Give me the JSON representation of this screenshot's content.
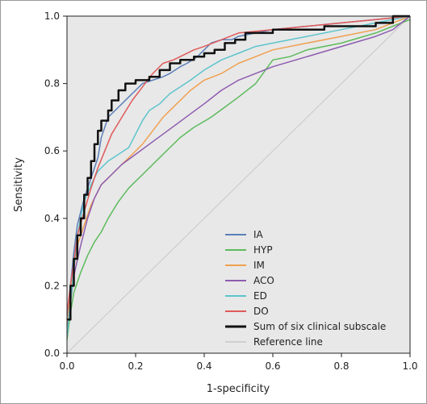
{
  "chart_data": {
    "type": "line",
    "title": "",
    "xlabel": "1-specificity",
    "ylabel": "Sensitivity",
    "xlim": [
      0,
      1
    ],
    "ylim": [
      0,
      1
    ],
    "x_ticks": [
      "0.0",
      "0.2",
      "0.4",
      "0.6",
      "0.8",
      "1.0"
    ],
    "y_ticks": [
      "0.0",
      "0.2",
      "0.4",
      "0.6",
      "0.8",
      "1.0"
    ],
    "plot_background": "#e8e8e8",
    "grid": false,
    "legend_position": "bottom-right",
    "series": [
      {
        "name": "IA",
        "color": "#5b7fb8",
        "width": 1.5,
        "x": [
          0,
          0.01,
          0.02,
          0.03,
          0.05,
          0.07,
          0.09,
          0.1,
          0.12,
          0.15,
          0.18,
          0.2,
          0.22,
          0.25,
          0.28,
          0.3,
          0.33,
          0.35,
          0.38,
          0.4,
          0.42,
          0.45,
          0.48,
          0.5,
          0.55,
          0.6,
          0.7,
          0.8,
          0.9,
          1.0
        ],
        "y": [
          0.1,
          0.2,
          0.3,
          0.38,
          0.46,
          0.52,
          0.58,
          0.64,
          0.7,
          0.73,
          0.76,
          0.78,
          0.8,
          0.81,
          0.82,
          0.83,
          0.85,
          0.86,
          0.88,
          0.9,
          0.92,
          0.93,
          0.93,
          0.94,
          0.95,
          0.96,
          0.97,
          0.98,
          0.99,
          1.0
        ]
      },
      {
        "name": "HYP",
        "color": "#5dbb5d",
        "width": 1.5,
        "x": [
          0,
          0.01,
          0.02,
          0.04,
          0.06,
          0.08,
          0.1,
          0.12,
          0.15,
          0.18,
          0.22,
          0.26,
          0.3,
          0.33,
          0.37,
          0.42,
          0.46,
          0.5,
          0.55,
          0.6,
          0.65,
          0.7,
          0.8,
          0.9,
          0.95,
          1.0
        ],
        "y": [
          0.04,
          0.12,
          0.18,
          0.24,
          0.29,
          0.33,
          0.36,
          0.4,
          0.45,
          0.49,
          0.53,
          0.57,
          0.61,
          0.64,
          0.67,
          0.7,
          0.73,
          0.76,
          0.8,
          0.87,
          0.88,
          0.9,
          0.92,
          0.95,
          0.97,
          0.99
        ]
      },
      {
        "name": "IM",
        "color": "#f0a050",
        "width": 1.5,
        "x": [
          0,
          0.01,
          0.02,
          0.03,
          0.05,
          0.07,
          0.1,
          0.13,
          0.16,
          0.19,
          0.22,
          0.25,
          0.28,
          0.32,
          0.36,
          0.4,
          0.45,
          0.5,
          0.55,
          0.6,
          0.7,
          0.8,
          0.9,
          0.95,
          1.0
        ],
        "y": [
          0.08,
          0.17,
          0.25,
          0.32,
          0.38,
          0.44,
          0.5,
          0.53,
          0.56,
          0.59,
          0.62,
          0.66,
          0.7,
          0.74,
          0.78,
          0.81,
          0.83,
          0.86,
          0.88,
          0.9,
          0.92,
          0.94,
          0.96,
          0.98,
          1.0
        ]
      },
      {
        "name": "ACO",
        "color": "#8d5cb0",
        "width": 1.5,
        "x": [
          0,
          0.01,
          0.02,
          0.04,
          0.06,
          0.08,
          0.1,
          0.13,
          0.16,
          0.2,
          0.24,
          0.28,
          0.32,
          0.36,
          0.4,
          0.45,
          0.5,
          0.55,
          0.6,
          0.7,
          0.8,
          0.9,
          0.95,
          1.0
        ],
        "y": [
          0.06,
          0.15,
          0.23,
          0.32,
          0.4,
          0.46,
          0.5,
          0.53,
          0.56,
          0.59,
          0.62,
          0.65,
          0.68,
          0.71,
          0.74,
          0.78,
          0.81,
          0.83,
          0.85,
          0.88,
          0.91,
          0.94,
          0.96,
          1.0
        ]
      },
      {
        "name": "ED",
        "color": "#5ec4cc",
        "width": 1.5,
        "x": [
          0,
          0.01,
          0.02,
          0.03,
          0.05,
          0.07,
          0.09,
          0.12,
          0.15,
          0.18,
          0.2,
          0.22,
          0.24,
          0.27,
          0.3,
          0.33,
          0.36,
          0.4,
          0.45,
          0.5,
          0.55,
          0.6,
          0.7,
          0.8,
          0.9,
          1.0
        ],
        "y": [
          0.05,
          0.15,
          0.25,
          0.35,
          0.45,
          0.5,
          0.54,
          0.57,
          0.59,
          0.61,
          0.65,
          0.69,
          0.72,
          0.74,
          0.77,
          0.79,
          0.81,
          0.84,
          0.87,
          0.89,
          0.91,
          0.92,
          0.94,
          0.96,
          0.98,
          1.0
        ]
      },
      {
        "name": "DO",
        "color": "#e05a5a",
        "width": 1.5,
        "x": [
          0,
          0.01,
          0.02,
          0.03,
          0.05,
          0.07,
          0.09,
          0.11,
          0.13,
          0.16,
          0.19,
          0.22,
          0.25,
          0.28,
          0.31,
          0.33,
          0.37,
          0.4,
          0.45,
          0.5,
          0.6,
          0.7,
          0.8,
          0.9,
          1.0
        ],
        "y": [
          0.12,
          0.2,
          0.27,
          0.35,
          0.42,
          0.49,
          0.55,
          0.6,
          0.65,
          0.7,
          0.75,
          0.79,
          0.83,
          0.86,
          0.87,
          0.88,
          0.9,
          0.91,
          0.93,
          0.95,
          0.96,
          0.97,
          0.98,
          0.99,
          1.0
        ]
      },
      {
        "name": "Sum of six clinical subscale",
        "color": "#111111",
        "width": 2.5,
        "x": [
          0,
          0.01,
          0.01,
          0.02,
          0.02,
          0.03,
          0.03,
          0.04,
          0.04,
          0.05,
          0.05,
          0.06,
          0.06,
          0.07,
          0.07,
          0.08,
          0.08,
          0.09,
          0.09,
          0.1,
          0.1,
          0.12,
          0.12,
          0.13,
          0.13,
          0.15,
          0.15,
          0.17,
          0.17,
          0.2,
          0.2,
          0.24,
          0.24,
          0.27,
          0.27,
          0.3,
          0.3,
          0.33,
          0.33,
          0.37,
          0.37,
          0.4,
          0.4,
          0.43,
          0.43,
          0.46,
          0.46,
          0.49,
          0.49,
          0.52,
          0.52,
          0.6,
          0.6,
          0.75,
          0.75,
          0.9,
          0.9,
          0.95,
          0.95,
          1.0
        ],
        "y": [
          0.1,
          0.1,
          0.2,
          0.2,
          0.28,
          0.28,
          0.35,
          0.35,
          0.4,
          0.4,
          0.47,
          0.47,
          0.52,
          0.52,
          0.57,
          0.57,
          0.62,
          0.62,
          0.66,
          0.66,
          0.69,
          0.69,
          0.72,
          0.72,
          0.75,
          0.75,
          0.78,
          0.78,
          0.8,
          0.8,
          0.81,
          0.81,
          0.82,
          0.82,
          0.84,
          0.84,
          0.86,
          0.86,
          0.87,
          0.87,
          0.88,
          0.88,
          0.89,
          0.89,
          0.9,
          0.9,
          0.92,
          0.92,
          0.93,
          0.93,
          0.95,
          0.95,
          0.96,
          0.96,
          0.97,
          0.97,
          0.98,
          0.98,
          1.0,
          1.0
        ]
      },
      {
        "name": "Reference line",
        "color": "#c8c8c8",
        "width": 1,
        "x": [
          0,
          1
        ],
        "y": [
          0,
          1
        ]
      }
    ]
  }
}
